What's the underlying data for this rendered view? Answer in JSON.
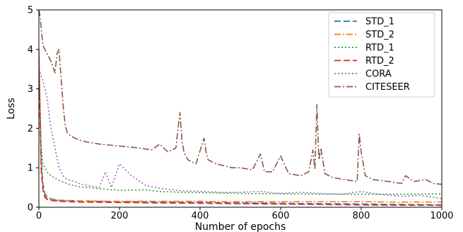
{
  "chart_data": {
    "type": "line",
    "xlabel": "Number of epochs",
    "ylabel": "Loss",
    "xlim": [
      0,
      1000
    ],
    "ylim": [
      0,
      5
    ],
    "xticks": [
      0,
      200,
      400,
      600,
      800,
      1000
    ],
    "yticks": [
      0,
      1,
      2,
      3,
      4,
      5
    ],
    "grid": false,
    "legend_position": "top-right",
    "series": [
      {
        "name": "STD_1",
        "color": "#1f77b4",
        "dash": "9,4",
        "x": [
          0,
          3,
          6,
          10,
          15,
          20,
          30,
          50,
          100,
          200,
          300,
          400,
          500,
          600,
          700,
          800,
          900,
          1000
        ],
        "y": [
          3.9,
          2.5,
          1.2,
          0.6,
          0.35,
          0.27,
          0.21,
          0.18,
          0.16,
          0.14,
          0.13,
          0.12,
          0.11,
          0.1,
          0.09,
          0.08,
          0.07,
          0.06
        ]
      },
      {
        "name": "STD_2",
        "color": "#ff7f0e",
        "dash": "9,3,2,3",
        "x": [
          0,
          3,
          6,
          10,
          15,
          20,
          30,
          50,
          100,
          200,
          300,
          400,
          500,
          600,
          700,
          800,
          900,
          1000
        ],
        "y": [
          4.0,
          2.3,
          1.0,
          0.5,
          0.3,
          0.23,
          0.19,
          0.17,
          0.16,
          0.15,
          0.15,
          0.15,
          0.14,
          0.14,
          0.14,
          0.14,
          0.13,
          0.13
        ]
      },
      {
        "name": "RTD_1",
        "color": "#2ca02c",
        "dash": "2,3",
        "x": [
          0,
          5,
          10,
          20,
          30,
          50,
          75,
          100,
          150,
          200,
          265,
          300,
          350,
          400,
          450,
          500,
          600,
          700,
          800,
          900,
          1000
        ],
        "y": [
          4.0,
          1.6,
          1.1,
          0.9,
          0.8,
          0.68,
          0.58,
          0.52,
          0.47,
          0.43,
          0.44,
          0.4,
          0.38,
          0.37,
          0.36,
          0.35,
          0.34,
          0.33,
          0.33,
          0.33,
          0.34
        ]
      },
      {
        "name": "RTD_2",
        "color": "#d62728",
        "dash": "9,4",
        "x": [
          0,
          3,
          6,
          10,
          15,
          20,
          30,
          50,
          100,
          200,
          300,
          400,
          500,
          600,
          700,
          800,
          900,
          1000
        ],
        "y": [
          3.8,
          2.2,
          0.9,
          0.45,
          0.25,
          0.2,
          0.17,
          0.15,
          0.13,
          0.12,
          0.11,
          0.1,
          0.09,
          0.08,
          0.07,
          0.06,
          0.05,
          0.05
        ]
      },
      {
        "name": "CORA",
        "color": "#9467bd",
        "dash": "2,3",
        "x": [
          0,
          10,
          20,
          30,
          40,
          50,
          60,
          70,
          90,
          100,
          120,
          150,
          165,
          180,
          200,
          230,
          265,
          300,
          350,
          400,
          450,
          500,
          550,
          600,
          650,
          700,
          750,
          800,
          850,
          900,
          950,
          1000
        ],
        "y": [
          3.5,
          3.2,
          2.8,
          2.0,
          1.5,
          1.0,
          0.8,
          0.7,
          0.65,
          0.6,
          0.55,
          0.5,
          0.9,
          0.5,
          1.1,
          0.8,
          0.55,
          0.48,
          0.42,
          0.4,
          0.38,
          0.38,
          0.4,
          0.35,
          0.38,
          0.35,
          0.33,
          0.4,
          0.32,
          0.28,
          0.3,
          0.22
        ]
      },
      {
        "name": "CITESEER",
        "color": "#8c564b",
        "dash": "9,3,2,3",
        "x": [
          0,
          2,
          5,
          10,
          20,
          30,
          40,
          45,
          50,
          55,
          60,
          65,
          70,
          80,
          100,
          120,
          150,
          200,
          250,
          280,
          300,
          320,
          340,
          350,
          355,
          360,
          365,
          370,
          390,
          405,
          410,
          415,
          420,
          440,
          460,
          480,
          500,
          530,
          550,
          560,
          580,
          600,
          620,
          650,
          670,
          680,
          685,
          690,
          695,
          700,
          710,
          730,
          760,
          790,
          795,
          800,
          805,
          810,
          830,
          870,
          900,
          910,
          930,
          960,
          980,
          1000
        ],
        "y": [
          5.0,
          4.9,
          4.6,
          4.1,
          3.9,
          3.7,
          3.4,
          3.9,
          4.0,
          3.3,
          2.6,
          2.1,
          1.9,
          1.8,
          1.7,
          1.65,
          1.6,
          1.55,
          1.5,
          1.45,
          1.6,
          1.4,
          1.5,
          2.4,
          1.7,
          1.4,
          1.3,
          1.2,
          1.1,
          1.6,
          1.75,
          1.4,
          1.2,
          1.1,
          1.05,
          1.0,
          1.0,
          0.95,
          1.35,
          0.9,
          0.9,
          1.3,
          0.85,
          0.8,
          0.9,
          1.45,
          0.95,
          2.6,
          1.2,
          1.5,
          0.85,
          0.75,
          0.7,
          0.65,
          1.85,
          1.4,
          1.1,
          0.8,
          0.7,
          0.65,
          0.6,
          0.8,
          0.65,
          0.7,
          0.6,
          0.58
        ]
      }
    ]
  }
}
